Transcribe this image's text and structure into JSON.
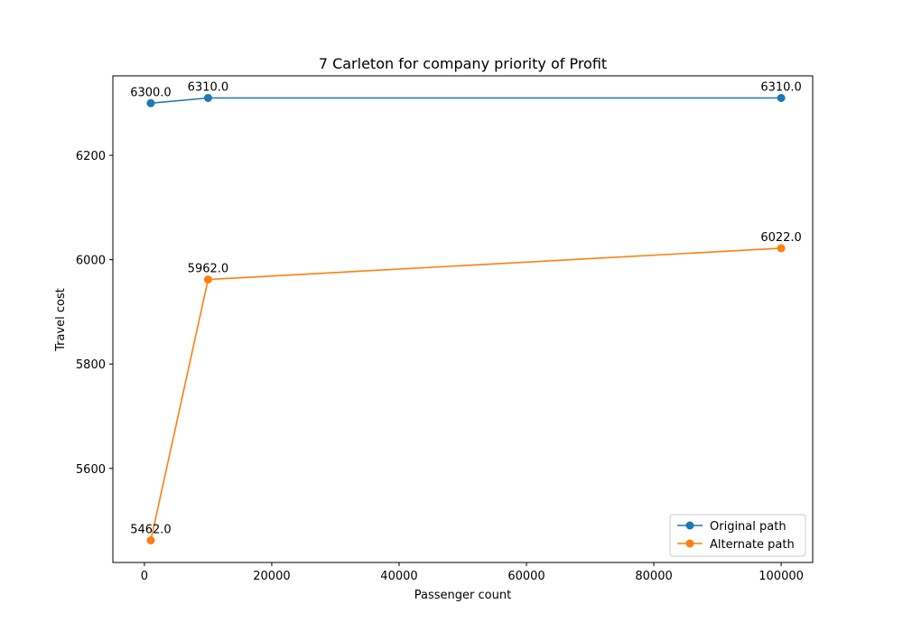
{
  "chart_data": {
    "type": "line",
    "title": "7 Carleton for company priority of Profit",
    "xlabel": "Passenger count",
    "ylabel": "Travel cost",
    "x": [
      1000,
      10000,
      100000
    ],
    "xlim": [
      -4950,
      104950
    ],
    "ylim": [
      5419.6,
      6352.4
    ],
    "xticks": [
      0,
      20000,
      40000,
      60000,
      80000,
      100000
    ],
    "xtick_labels": [
      "0",
      "20000",
      "40000",
      "60000",
      "80000",
      "100000"
    ],
    "yticks": [
      5600,
      5800,
      6000,
      6200
    ],
    "ytick_labels": [
      "5600",
      "5800",
      "6000",
      "6200"
    ],
    "grid": false,
    "legend_position": "lower-right",
    "series": [
      {
        "name": "Original path",
        "color": "#1f77b4",
        "values": [
          6300.0,
          6310.0,
          6310.0
        ],
        "labels": [
          "6300.0",
          "6310.0",
          "6310.0"
        ]
      },
      {
        "name": "Alternate path",
        "color": "#ff7f0e",
        "values": [
          5462.0,
          5962.0,
          6022.0
        ],
        "labels": [
          "5462.0",
          "5962.0",
          "6022.0"
        ]
      }
    ]
  }
}
